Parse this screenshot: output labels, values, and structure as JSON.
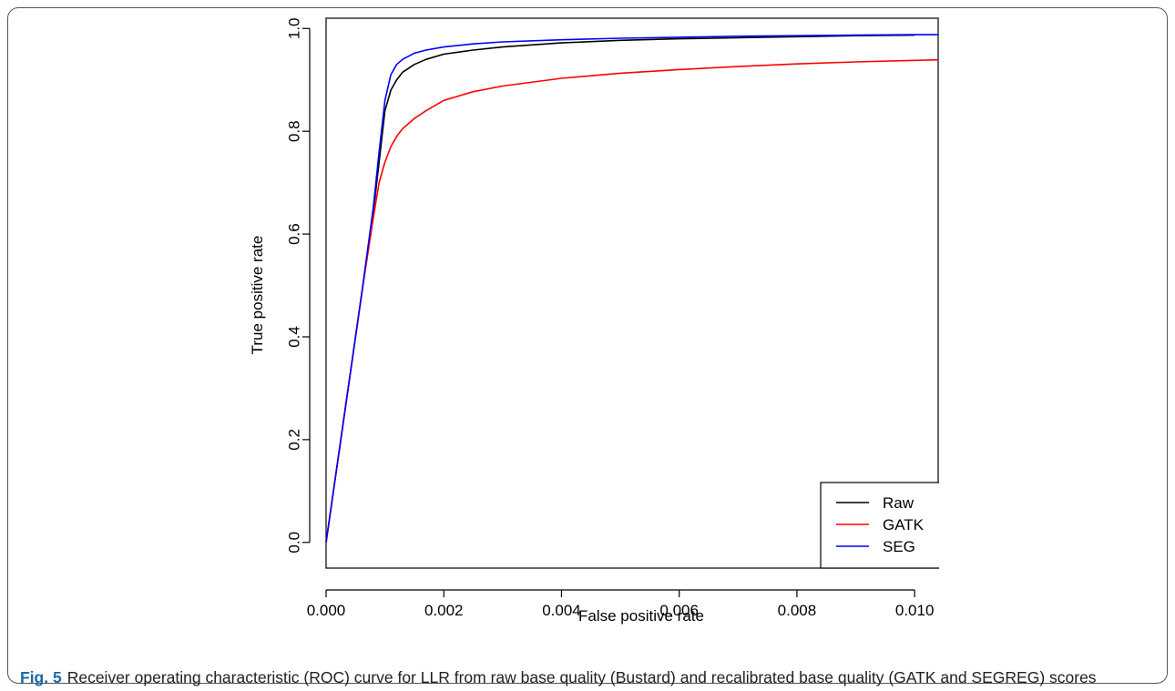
{
  "figure": {
    "label": "Fig. 5",
    "caption": "Receiver operating characteristic (ROC) curve for LLR from raw base quality (Bustard) and recalibrated base quality (GATK and SEGREG) scores"
  },
  "chart_data": {
    "type": "line",
    "xlabel": "False positive rate",
    "ylabel": "True positive rate",
    "xlim": [
      0.0,
      0.0104
    ],
    "ylim": [
      -0.05,
      1.02
    ],
    "xticks": [
      "0.000",
      "0.002",
      "0.004",
      "0.006",
      "0.008",
      "0.010"
    ],
    "xtick_values": [
      0.0,
      0.002,
      0.004,
      0.006,
      0.008,
      0.01
    ],
    "yticks": [
      "0.0",
      "0.2",
      "0.4",
      "0.6",
      "0.8",
      "1.0"
    ],
    "ytick_values": [
      0.0,
      0.2,
      0.4,
      0.6,
      0.8,
      1.0
    ],
    "grid": false,
    "legend_position": "bottom-right",
    "series": [
      {
        "name": "Raw",
        "color": "#000000",
        "x": [
          0.0,
          0.0003,
          0.0006,
          0.0008,
          0.0009,
          0.001,
          0.0011,
          0.0012,
          0.0013,
          0.0015,
          0.0017,
          0.002,
          0.0025,
          0.003,
          0.004,
          0.005,
          0.006,
          0.007,
          0.008,
          0.009,
          0.01
        ],
        "y": [
          0.0,
          0.24,
          0.48,
          0.64,
          0.74,
          0.84,
          0.88,
          0.9,
          0.915,
          0.93,
          0.94,
          0.95,
          0.958,
          0.964,
          0.972,
          0.977,
          0.98,
          0.982,
          0.984,
          0.986,
          0.987
        ]
      },
      {
        "name": "GATK",
        "color": "#ff0000",
        "x": [
          0.0,
          0.0003,
          0.0006,
          0.0008,
          0.0009,
          0.001,
          0.0011,
          0.0012,
          0.0013,
          0.0015,
          0.0017,
          0.002,
          0.0025,
          0.003,
          0.004,
          0.005,
          0.006,
          0.007,
          0.008,
          0.009,
          0.01,
          0.0104
        ],
        "y": [
          0.0,
          0.24,
          0.48,
          0.63,
          0.7,
          0.74,
          0.77,
          0.79,
          0.805,
          0.825,
          0.84,
          0.86,
          0.877,
          0.888,
          0.903,
          0.913,
          0.92,
          0.926,
          0.931,
          0.935,
          0.938,
          0.939
        ]
      },
      {
        "name": "SEG",
        "color": "#0000ff",
        "x": [
          0.0,
          0.0003,
          0.0006,
          0.0008,
          0.0009,
          0.001,
          0.0011,
          0.0012,
          0.0013,
          0.0015,
          0.0017,
          0.002,
          0.0025,
          0.003,
          0.004,
          0.005,
          0.006,
          0.007,
          0.008,
          0.009,
          0.01,
          0.0104
        ],
        "y": [
          0.0,
          0.24,
          0.48,
          0.65,
          0.76,
          0.86,
          0.91,
          0.93,
          0.94,
          0.952,
          0.958,
          0.964,
          0.97,
          0.974,
          0.978,
          0.981,
          0.983,
          0.985,
          0.986,
          0.987,
          0.988,
          0.988
        ]
      }
    ]
  }
}
